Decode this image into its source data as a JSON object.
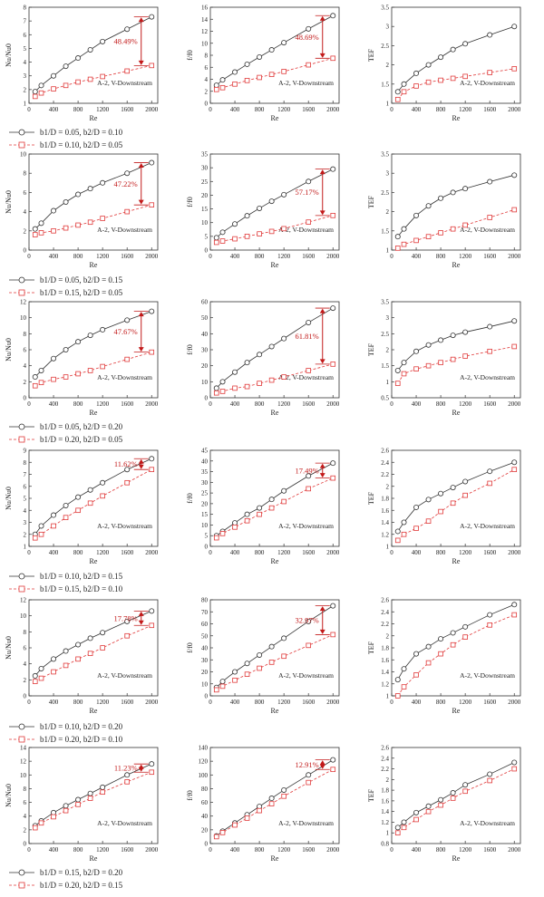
{
  "common": {
    "annotation": "A-2, V-Downstream",
    "xlabel": "Re",
    "x": [
      100,
      200,
      400,
      600,
      800,
      1000,
      1200,
      1600,
      2000
    ],
    "x_ticks": [
      0,
      400,
      800,
      1200,
      1600,
      2000
    ]
  },
  "colors": {
    "series1": "#333333",
    "series2": "#e03a3a",
    "accent": "#c21a1a",
    "axis": "#333333"
  },
  "chart_data": [
    {
      "type": "line",
      "row": 1,
      "col": 1,
      "ylabel": "Nu/Nu0",
      "annotation": "A-2, V-Downstream",
      "xlabel": "Re",
      "ylim": [
        1,
        8
      ],
      "yticks": [
        1,
        2,
        3,
        4,
        5,
        6,
        7,
        8
      ],
      "percent": "48.49%",
      "series": [
        {
          "name": "b1/D = 0.05, b2/D = 0.10",
          "values": [
            1.85,
            2.3,
            3.0,
            3.7,
            4.3,
            4.9,
            5.5,
            6.4,
            7.3
          ]
        },
        {
          "name": "b1/D = 0.10, b2/D = 0.05",
          "values": [
            1.5,
            1.75,
            2.05,
            2.3,
            2.55,
            2.75,
            2.95,
            3.35,
            3.75
          ]
        }
      ]
    },
    {
      "type": "line",
      "row": 1,
      "col": 2,
      "ylabel": "f/f0",
      "annotation": "A-2, V-Downstream",
      "xlabel": "Re",
      "ylim": [
        0,
        16
      ],
      "yticks": [
        0,
        2,
        4,
        6,
        8,
        10,
        12,
        14,
        16
      ],
      "percent": "48.69%",
      "series": [
        {
          "name": "b1/D = 0.05, b2/D = 0.10",
          "values": [
            3.0,
            3.9,
            5.2,
            6.5,
            7.7,
            8.9,
            10.1,
            12.4,
            14.6
          ]
        },
        {
          "name": "b1/D = 0.10, b2/D = 0.05",
          "values": [
            2.3,
            2.6,
            3.2,
            3.8,
            4.3,
            4.8,
            5.3,
            6.4,
            7.5
          ]
        }
      ]
    },
    {
      "type": "line",
      "row": 1,
      "col": 3,
      "ylabel": "TEF",
      "annotation": "A-2, V-Downstream",
      "xlabel": "Re",
      "ylim": [
        1.0,
        3.5
      ],
      "yticks": [
        1.0,
        1.5,
        2.0,
        2.5,
        3.0,
        3.5
      ],
      "percent": "",
      "series": [
        {
          "name": "b1/D = 0.05, b2/D = 0.10",
          "values": [
            1.3,
            1.5,
            1.78,
            2.0,
            2.2,
            2.4,
            2.55,
            2.78,
            3.0
          ]
        },
        {
          "name": "b1/D = 0.10, b2/D = 0.05",
          "values": [
            1.1,
            1.3,
            1.45,
            1.55,
            1.6,
            1.65,
            1.7,
            1.8,
            1.9
          ]
        }
      ]
    },
    {
      "type": "line",
      "row": 2,
      "col": 1,
      "ylabel": "Nu/Nu0",
      "annotation": "A-2, V-Downstream",
      "xlabel": "Re",
      "ylim": [
        0,
        10
      ],
      "yticks": [
        0,
        2,
        4,
        6,
        8,
        10
      ],
      "percent": "47.22%",
      "series": [
        {
          "name": "b1/D = 0.05, b2/D = 0.15",
          "values": [
            2.2,
            2.8,
            4.1,
            5.0,
            5.8,
            6.4,
            7.0,
            8.0,
            9.1
          ]
        },
        {
          "name": "b1/D = 0.15, b2/D = 0.05",
          "values": [
            1.6,
            1.8,
            2.0,
            2.3,
            2.6,
            2.9,
            3.3,
            4.0,
            4.7
          ]
        }
      ]
    },
    {
      "type": "line",
      "row": 2,
      "col": 2,
      "ylabel": "f/f0",
      "annotation": "A-2, V-Downstream",
      "xlabel": "Re",
      "ylim": [
        0,
        35
      ],
      "yticks": [
        0,
        5,
        10,
        15,
        20,
        25,
        30,
        35
      ],
      "percent": "57.17%",
      "series": [
        {
          "name": "b1/D = 0.05, b2/D = 0.15",
          "values": [
            4.5,
            6.5,
            9.5,
            12.5,
            15.2,
            17.8,
            20.2,
            25.0,
            29.5
          ]
        },
        {
          "name": "b1/D = 0.15, b2/D = 0.05",
          "values": [
            2.8,
            3.3,
            4.1,
            5.0,
            5.9,
            6.8,
            7.8,
            10.2,
            12.6
          ]
        }
      ]
    },
    {
      "type": "line",
      "row": 2,
      "col": 3,
      "ylabel": "TEF",
      "annotation": "A-2, V-Downstream",
      "xlabel": "Re",
      "ylim": [
        1.0,
        3.5
      ],
      "yticks": [
        1.0,
        1.5,
        2.0,
        2.5,
        3.0,
        3.5
      ],
      "percent": "",
      "series": [
        {
          "name": "b1/D = 0.05, b2/D = 0.15",
          "values": [
            1.35,
            1.55,
            1.9,
            2.15,
            2.35,
            2.5,
            2.6,
            2.78,
            2.95
          ]
        },
        {
          "name": "b1/D = 0.15, b2/D = 0.05",
          "values": [
            1.05,
            1.15,
            1.25,
            1.35,
            1.45,
            1.55,
            1.65,
            1.85,
            2.05
          ]
        }
      ]
    },
    {
      "type": "line",
      "row": 3,
      "col": 1,
      "ylabel": "Nu/Nu0",
      "annotation": "A-2, V-Downstream",
      "xlabel": "Re",
      "ylim": [
        0,
        12
      ],
      "yticks": [
        0,
        2,
        4,
        6,
        8,
        10,
        12
      ],
      "percent": "47.67%",
      "series": [
        {
          "name": "b1/D = 0.05, b2/D = 0.20",
          "values": [
            2.6,
            3.4,
            4.9,
            6.0,
            7.0,
            7.8,
            8.5,
            9.7,
            10.8
          ]
        },
        {
          "name": "b1/D = 0.20, b2/D = 0.05",
          "values": [
            1.5,
            1.9,
            2.3,
            2.6,
            3.0,
            3.4,
            3.9,
            4.8,
            5.7
          ]
        }
      ]
    },
    {
      "type": "line",
      "row": 3,
      "col": 2,
      "ylabel": "f/f0",
      "annotation": "A-2, V-Downstream",
      "xlabel": "Re",
      "ylim": [
        0,
        60
      ],
      "yticks": [
        0,
        10,
        20,
        30,
        40,
        50,
        60
      ],
      "percent": "61.81%",
      "series": [
        {
          "name": "b1/D = 0.05, b2/D = 0.20",
          "values": [
            6,
            10,
            16,
            22,
            27,
            32,
            37,
            47,
            56
          ]
        },
        {
          "name": "b1/D = 0.20, b2/D = 0.05",
          "values": [
            3,
            4,
            6,
            7,
            9,
            11,
            13,
            17,
            21
          ]
        }
      ]
    },
    {
      "type": "line",
      "row": 3,
      "col": 3,
      "ylabel": "TEF",
      "annotation": "A-2, V-Downstream",
      "xlabel": "Re",
      "ylim": [
        0.5,
        3.5
      ],
      "yticks": [
        0.5,
        1.0,
        1.5,
        2.0,
        2.5,
        3.0,
        3.5
      ],
      "percent": "",
      "series": [
        {
          "name": "b1/D = 0.05, b2/D = 0.20",
          "values": [
            1.35,
            1.6,
            1.95,
            2.15,
            2.3,
            2.45,
            2.55,
            2.72,
            2.9
          ]
        },
        {
          "name": "b1/D = 0.20, b2/D = 0.05",
          "values": [
            0.95,
            1.25,
            1.4,
            1.5,
            1.6,
            1.7,
            1.8,
            1.95,
            2.1
          ]
        }
      ]
    },
    {
      "type": "line",
      "row": 4,
      "col": 1,
      "ylabel": "Nu/Nu0",
      "annotation": "A-2, V-Downstream",
      "xlabel": "Re",
      "ylim": [
        1,
        9
      ],
      "yticks": [
        1,
        2,
        3,
        4,
        5,
        6,
        7,
        8,
        9
      ],
      "percent": "11.62%",
      "series": [
        {
          "name": "b1/D = 0.10, b2/D = 0.15",
          "values": [
            2.0,
            2.7,
            3.6,
            4.4,
            5.1,
            5.7,
            6.3,
            7.4,
            8.3
          ]
        },
        {
          "name": "b1/D = 0.15, b2/D = 0.10",
          "values": [
            1.7,
            2.0,
            2.7,
            3.4,
            4.0,
            4.6,
            5.2,
            6.3,
            7.4
          ]
        }
      ]
    },
    {
      "type": "line",
      "row": 4,
      "col": 2,
      "ylabel": "f/f0",
      "annotation": "A-2, V-Downstream",
      "xlabel": "Re",
      "ylim": [
        0,
        45
      ],
      "yticks": [
        0,
        5,
        10,
        15,
        20,
        25,
        30,
        35,
        40,
        45
      ],
      "percent": "17.49%",
      "series": [
        {
          "name": "b1/D = 0.10, b2/D = 0.15",
          "values": [
            5,
            7,
            11,
            15,
            18,
            22,
            26,
            33,
            39
          ]
        },
        {
          "name": "b1/D = 0.15, b2/D = 0.10",
          "values": [
            4,
            6,
            9,
            12,
            15,
            18,
            21,
            27,
            32
          ]
        }
      ]
    },
    {
      "type": "line",
      "row": 4,
      "col": 3,
      "ylabel": "TEF",
      "annotation": "A-2, V-Downstream",
      "xlabel": "Re",
      "ylim": [
        1.0,
        2.6
      ],
      "yticks": [
        1.0,
        1.2,
        1.4,
        1.6,
        1.8,
        2.0,
        2.2,
        2.4,
        2.6
      ],
      "percent": "",
      "series": [
        {
          "name": "b1/D = 0.10, b2/D = 0.15",
          "values": [
            1.25,
            1.4,
            1.65,
            1.78,
            1.88,
            1.98,
            2.08,
            2.25,
            2.4
          ]
        },
        {
          "name": "b1/D = 0.15, b2/D = 0.10",
          "values": [
            1.1,
            1.2,
            1.3,
            1.42,
            1.58,
            1.72,
            1.85,
            2.05,
            2.28
          ]
        }
      ]
    },
    {
      "type": "line",
      "row": 5,
      "col": 1,
      "ylabel": "Nu/Nu0",
      "annotation": "A-2, V-Downstream",
      "xlabel": "Re",
      "ylim": [
        0,
        12
      ],
      "yticks": [
        0,
        2,
        4,
        6,
        8,
        10,
        12
      ],
      "percent": "17.78%",
      "series": [
        {
          "name": "b1/D = 0.10, b2/D = 0.20",
          "values": [
            2.5,
            3.4,
            4.6,
            5.6,
            6.4,
            7.2,
            7.9,
            9.3,
            10.6
          ]
        },
        {
          "name": "b1/D = 0.20, b2/D = 0.10",
          "values": [
            1.8,
            2.2,
            3.0,
            3.8,
            4.6,
            5.3,
            6.0,
            7.5,
            8.8
          ]
        }
      ]
    },
    {
      "type": "line",
      "row": 5,
      "col": 2,
      "ylabel": "f/f0",
      "annotation": "A-2, V-Downstream",
      "xlabel": "Re",
      "ylim": [
        0,
        80
      ],
      "yticks": [
        0,
        10,
        20,
        30,
        40,
        50,
        60,
        70,
        80
      ],
      "percent": "32.97%",
      "series": [
        {
          "name": "b1/D = 0.10, b2/D = 0.20",
          "values": [
            7,
            12,
            20,
            27,
            34,
            41,
            48,
            62,
            75
          ]
        },
        {
          "name": "b1/D = 0.20, b2/D = 0.10",
          "values": [
            5,
            8,
            13,
            18,
            23,
            28,
            33,
            42,
            51
          ]
        }
      ]
    },
    {
      "type": "line",
      "row": 5,
      "col": 3,
      "ylabel": "TEF",
      "annotation": "A-2, V-Downstream",
      "xlabel": "Re",
      "ylim": [
        1.0,
        2.6
      ],
      "yticks": [
        1.0,
        1.2,
        1.4,
        1.6,
        1.8,
        2.0,
        2.2,
        2.4,
        2.6
      ],
      "percent": "",
      "series": [
        {
          "name": "b1/D = 0.10, b2/D = 0.20",
          "values": [
            1.27,
            1.45,
            1.7,
            1.82,
            1.95,
            2.05,
            2.15,
            2.35,
            2.52
          ]
        },
        {
          "name": "b1/D = 0.20, b2/D = 0.10",
          "values": [
            1.0,
            1.15,
            1.35,
            1.55,
            1.7,
            1.85,
            1.98,
            2.18,
            2.35
          ]
        }
      ]
    },
    {
      "type": "line",
      "row": 6,
      "col": 1,
      "ylabel": "Nu/Nu0",
      "annotation": "A-2, V-Downstream",
      "xlabel": "Re",
      "ylim": [
        0,
        14
      ],
      "yticks": [
        0,
        2,
        4,
        6,
        8,
        10,
        12,
        14
      ],
      "percent": "11.23%",
      "series": [
        {
          "name": "b1/D = 0.15, b2/D = 0.20",
          "values": [
            2.6,
            3.3,
            4.5,
            5.5,
            6.4,
            7.3,
            8.2,
            10.0,
            11.6
          ]
        },
        {
          "name": "b1/D = 0.20, b2/D = 0.15",
          "values": [
            2.3,
            3.0,
            3.9,
            4.8,
            5.7,
            6.6,
            7.5,
            9.0,
            10.4
          ]
        }
      ]
    },
    {
      "type": "line",
      "row": 6,
      "col": 2,
      "ylabel": "f/f0",
      "annotation": "A-2, V-Downstream",
      "xlabel": "Re",
      "ylim": [
        0,
        140
      ],
      "yticks": [
        0,
        20,
        40,
        60,
        80,
        100,
        120,
        140
      ],
      "percent": "12.91%",
      "series": [
        {
          "name": "b1/D = 0.15, b2/D = 0.20",
          "values": [
            11,
            18,
            30,
            42,
            54,
            66,
            78,
            100,
            122
          ]
        },
        {
          "name": "b1/D = 0.20, b2/D = 0.15",
          "values": [
            10,
            16,
            27,
            37,
            48,
            58,
            69,
            89,
            108
          ]
        }
      ]
    },
    {
      "type": "line",
      "row": 6,
      "col": 3,
      "ylabel": "TEF",
      "annotation": "A-2, V-Downstream",
      "xlabel": "Re",
      "ylim": [
        0.8,
        2.6
      ],
      "yticks": [
        0.8,
        1.0,
        1.2,
        1.4,
        1.6,
        1.8,
        2.0,
        2.2,
        2.4,
        2.6
      ],
      "percent": "",
      "series": [
        {
          "name": "b1/D = 0.15, b2/D = 0.20",
          "values": [
            1.1,
            1.2,
            1.38,
            1.5,
            1.62,
            1.75,
            1.9,
            2.1,
            2.32
          ]
        },
        {
          "name": "b1/D = 0.20, b2/D = 0.15",
          "values": [
            1.0,
            1.1,
            1.25,
            1.4,
            1.52,
            1.65,
            1.78,
            1.98,
            2.2
          ]
        }
      ]
    }
  ],
  "legends": [
    {
      "row": 1,
      "items": [
        "b1/D = 0.05, b2/D = 0.10",
        "b1/D = 0.10, b2/D = 0.05"
      ]
    },
    {
      "row": 2,
      "items": [
        "b1/D = 0.05, b2/D = 0.15",
        "b1/D = 0.15, b2/D = 0.05"
      ]
    },
    {
      "row": 3,
      "items": [
        "b1/D = 0.05, b2/D = 0.20",
        "b1/D = 0.20, b2/D = 0.05"
      ]
    },
    {
      "row": 4,
      "items": [
        "b1/D = 0.10, b2/D = 0.15",
        "b1/D = 0.15, b2/D = 0.10"
      ]
    },
    {
      "row": 5,
      "items": [
        "b1/D = 0.10, b2/D = 0.20",
        "b1/D = 0.20, b2/D = 0.10"
      ]
    },
    {
      "row": 6,
      "items": [
        "b1/D = 0.15, b2/D = 0.20",
        "b1/D = 0.20, b2/D = 0.15"
      ]
    }
  ]
}
